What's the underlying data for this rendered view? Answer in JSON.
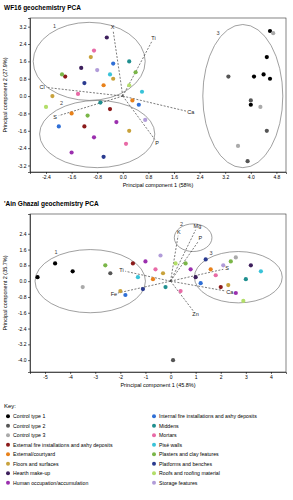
{
  "chart_data": [
    {
      "type": "scatter",
      "title": "WF16 geochemistry PCA",
      "x_label": "Principal component 1 (58%)",
      "y_label": "Principal component 2 (27.9%)",
      "xlim": [
        -2.9,
        5.1
      ],
      "ylim": [
        -3.5,
        3.6
      ],
      "xticks": [
        -2.4,
        -1.6,
        -0.8,
        {
          "value": 0,
          "label": "0.0"
        },
        0.8,
        1.6,
        2.4,
        3.2,
        {
          "value": 4,
          "label": "4.0"
        },
        4.8
      ],
      "yticks": [
        -3.2,
        -2.4,
        -1.6,
        -0.8,
        {
          "value": 0,
          "label": "0.0"
        },
        0.8,
        1.6,
        2.4,
        3.2
      ],
      "legend": "bottom",
      "legend_title": "Key:",
      "series": [
        {
          "name": "Control type 1",
          "color": "#000000",
          "x": [
            4.5,
            4.1,
            4.4,
            4.6,
            4.0,
            4.6
          ],
          "values": [
            1.8,
            0.9,
            1.0,
            0.8,
            -0.4,
            3.0
          ]
        },
        {
          "name": "Control type 2",
          "color": "#555555",
          "x": [
            3.3,
            4.0,
            3.9,
            4.5
          ],
          "values": [
            0.9,
            -0.2,
            -3.0,
            -1.6
          ]
        },
        {
          "name": "Control type 3",
          "color": "#aaaaaa",
          "x": [
            3.6,
            4.3,
            4.7
          ],
          "values": [
            -2.3,
            -0.5,
            2.9
          ]
        },
        {
          "name": "External fire installations and ashy deposits",
          "color": "#8b1a1a",
          "x": [
            -1.8,
            -0.4,
            -1.2
          ],
          "values": [
            0.9,
            -0.6,
            -1.4
          ]
        },
        {
          "name": "External/courtyard",
          "color": "#e8811a",
          "x": [
            -0.6,
            0.3,
            -1.6
          ],
          "values": [
            0.5,
            -0.2,
            -0.8
          ]
        },
        {
          "name": "Floors and surfaces",
          "color": "#c8a23c",
          "x": [
            -1.0,
            -0.3,
            0.2,
            -2.2
          ],
          "values": [
            1.8,
            0.8,
            -1.6,
            0.0
          ]
        },
        {
          "name": "Hearth make-up",
          "color": "#3d1f5c",
          "x": [
            -0.5,
            -1.3
          ],
          "values": [
            2.7,
            1.3
          ]
        },
        {
          "name": "Human occupation/accumulation",
          "color": "#9b2fae",
          "x": [
            -0.9,
            -0.2,
            -1.6
          ],
          "values": [
            -1.9,
            -1.2,
            -2.6
          ]
        },
        {
          "name": "Internal fire installations and ashy deposits",
          "color": "#2f6fd6",
          "x": [
            -0.3,
            -2.0,
            0.5
          ],
          "values": [
            1.5,
            -1.4,
            -0.4
          ]
        },
        {
          "name": "Middens",
          "color": "#1f8f8f",
          "x": [
            0.2,
            -0.7
          ],
          "values": [
            1.6,
            -0.3
          ]
        },
        {
          "name": "Mortars",
          "color": "#e86aa6",
          "x": [
            -1.4,
            0.1,
            -0.9
          ],
          "values": [
            0.1,
            -2.2,
            2.1
          ]
        },
        {
          "name": "Pisé walls",
          "color": "#39c3d9",
          "x": [
            0.6,
            -0.4
          ],
          "values": [
            0.2,
            1.0
          ]
        },
        {
          "name": "Plasters and clay features",
          "color": "#7ab648",
          "x": [
            -1.9,
            -1.1,
            0.4
          ],
          "values": [
            1.0,
            -0.9,
            1.1
          ]
        },
        {
          "name": "Platforms and benches",
          "color": "#2a3a8f",
          "x": [
            -0.6,
            -1.2
          ],
          "values": [
            -2.8,
            0.6
          ]
        },
        {
          "name": "Roofs and roofing material",
          "color": "#b3de69",
          "x": [
            0.2,
            -2.4
          ],
          "values": [
            0.5,
            -0.5
          ]
        },
        {
          "name": "Storage features",
          "color": "#b19cd9",
          "x": [
            -0.8,
            0.7
          ],
          "values": [
            1.2,
            -1.1
          ]
        }
      ],
      "loadings": [
        {
          "label": "X",
          "x": -0.3,
          "y": 3.0
        },
        {
          "label": "Ti",
          "x": 0.9,
          "y": 2.5
        },
        {
          "label": "Cl",
          "x": -2.4,
          "y": 0.4
        },
        {
          "label": "S",
          "x": -2.0,
          "y": -0.9
        },
        {
          "label": "P",
          "x": 1.0,
          "y": -2.0
        },
        {
          "label": "Ca",
          "x": 2.0,
          "y": -0.7
        }
      ],
      "groups": [
        {
          "label": "1",
          "cx": -1.05,
          "cy": 1.6,
          "rx": 1.75,
          "ry": 1.8
        },
        {
          "label": "2",
          "cx": -0.8,
          "cy": -1.75,
          "rx": 1.8,
          "ry": 1.55
        },
        {
          "label": "3",
          "cx": 3.75,
          "cy": 0.0,
          "rx": 1.25,
          "ry": 3.3
        }
      ]
    },
    {
      "type": "scatter",
      "title": "'Ain Ghazal geochemistry PCA",
      "x_label": "Principal component 1 (45.8%)",
      "y_label": "Principal component 2 (35.7%)",
      "xlim": [
        -5.6,
        4.6
      ],
      "ylim": [
        -4.6,
        3.4
      ],
      "xticks": [
        -5,
        -4,
        -3,
        -2,
        -1,
        0,
        1,
        2,
        3,
        4
      ],
      "yticks": [
        {
          "value": -4,
          "label": "-4.0"
        },
        -3.2,
        -2.4,
        -1.6,
        -0.8,
        {
          "value": 0,
          "label": "0.0"
        },
        0.8,
        1.6,
        2.4
      ],
      "series": [
        {
          "x": [
            -4.6,
            -3.9,
            -5.3
          ],
          "values": [
            0.9,
            0.5,
            0.2
          ]
        },
        {
          "x": [
            -2.4,
            0.1
          ],
          "values": [
            0.4,
            -4.0
          ]
        },
        {
          "x": [
            -3.5,
            2.6
          ],
          "values": [
            -0.3,
            1.2
          ]
        },
        {
          "x": [
            -1.5,
            2.0
          ],
          "values": [
            0.9,
            -0.3
          ]
        },
        {
          "x": [
            -0.7,
            1.6
          ],
          "values": [
            0.1,
            0.6
          ]
        },
        {
          "x": [
            -0.3,
            2.3,
            -2.0
          ],
          "values": [
            0.4,
            -0.2,
            -0.5
          ]
        },
        {
          "x": [
            1.0,
            3.2
          ],
          "values": [
            0.2,
            0.8
          ]
        },
        {
          "x": [
            -1.0,
            2.6,
            0.8
          ],
          "values": [
            1.0,
            -0.6,
            0.6
          ]
        },
        {
          "x": [
            -1.8,
            1.2
          ],
          "values": [
            -0.7,
            -0.1
          ]
        },
        {
          "x": [
            -0.2,
            3.0
          ],
          "values": [
            -0.3,
            0.1
          ]
        },
        {
          "x": [
            -0.6,
            1.8,
            0.4
          ],
          "values": [
            0.6,
            0.3,
            -0.5
          ]
        },
        {
          "x": [
            -1.3,
            3.6
          ],
          "values": [
            0.2,
            0.5
          ]
        },
        {
          "x": [
            -2.6,
            0.6,
            2.4
          ],
          "values": [
            0.8,
            0.9,
            1.0
          ]
        },
        {
          "x": [
            -1.1,
            1.4
          ],
          "values": [
            -0.4,
            1.1
          ]
        },
        {
          "x": [
            0.2,
            2.9
          ],
          "values": [
            0.9,
            -1.0
          ]
        },
        {
          "x": [
            -0.4,
            2.1
          ],
          "values": [
            1.3,
            0.8
          ]
        }
      ],
      "loadings": [
        {
          "label": "K",
          "x": 0.3,
          "y": 2.3
        },
        {
          "label": "Mg",
          "x": 1.0,
          "y": 2.6
        },
        {
          "label": "P",
          "x": 1.1,
          "y": 2.0
        },
        {
          "label": "S",
          "x": 2.1,
          "y": 0.6
        },
        {
          "label": "Ca",
          "x": 2.2,
          "y": -0.5
        },
        {
          "label": "Zn",
          "x": 0.9,
          "y": -1.5
        },
        {
          "label": "Ti",
          "x": -1.8,
          "y": 0.5
        },
        {
          "label": "Fe",
          "x": -2.1,
          "y": -0.6
        }
      ],
      "groups": [
        {
          "label": "1",
          "cx": -3.2,
          "cy": 0.0,
          "rx": 2.2,
          "ry": 1.6
        },
        {
          "label": "2",
          "cx": 0.9,
          "cy": 2.2,
          "rx": 0.75,
          "ry": 0.7
        },
        {
          "label": "3",
          "cx": 2.7,
          "cy": 0.2,
          "rx": 1.75,
          "ry": 1.3
        }
      ]
    }
  ]
}
